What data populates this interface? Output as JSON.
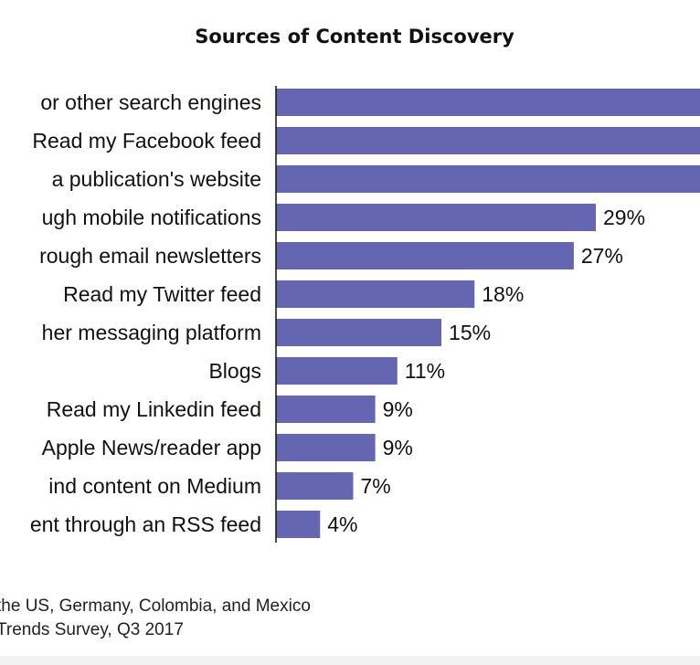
{
  "chart_data": {
    "type": "bar",
    "orientation": "horizontal",
    "title": "Sources of Content Discovery",
    "categories": [
      "or other search engines",
      "Read my Facebook feed",
      "a publication's website",
      "ugh mobile notifications",
      "rough email newsletters",
      "Read my Twitter feed",
      "her messaging platform",
      "Blogs",
      "Read my Linkedin feed",
      "Apple News/reader app",
      "ind content on Medium",
      "ent through an RSS feed"
    ],
    "values": [
      null,
      null,
      null,
      29,
      27,
      18,
      15,
      11,
      9,
      9,
      7,
      4
    ],
    "value_labels": [
      "",
      "",
      "",
      "29%",
      "27%",
      "18%",
      "15%",
      "11%",
      "9%",
      "9%",
      "7%",
      "4%"
    ],
    "bar_color": "#6466b1",
    "grid": false,
    "legend": "none"
  },
  "footnotes": [
    "the US, Germany, Colombia, and Mexico",
    "Trends Survey, Q3 2017"
  ]
}
